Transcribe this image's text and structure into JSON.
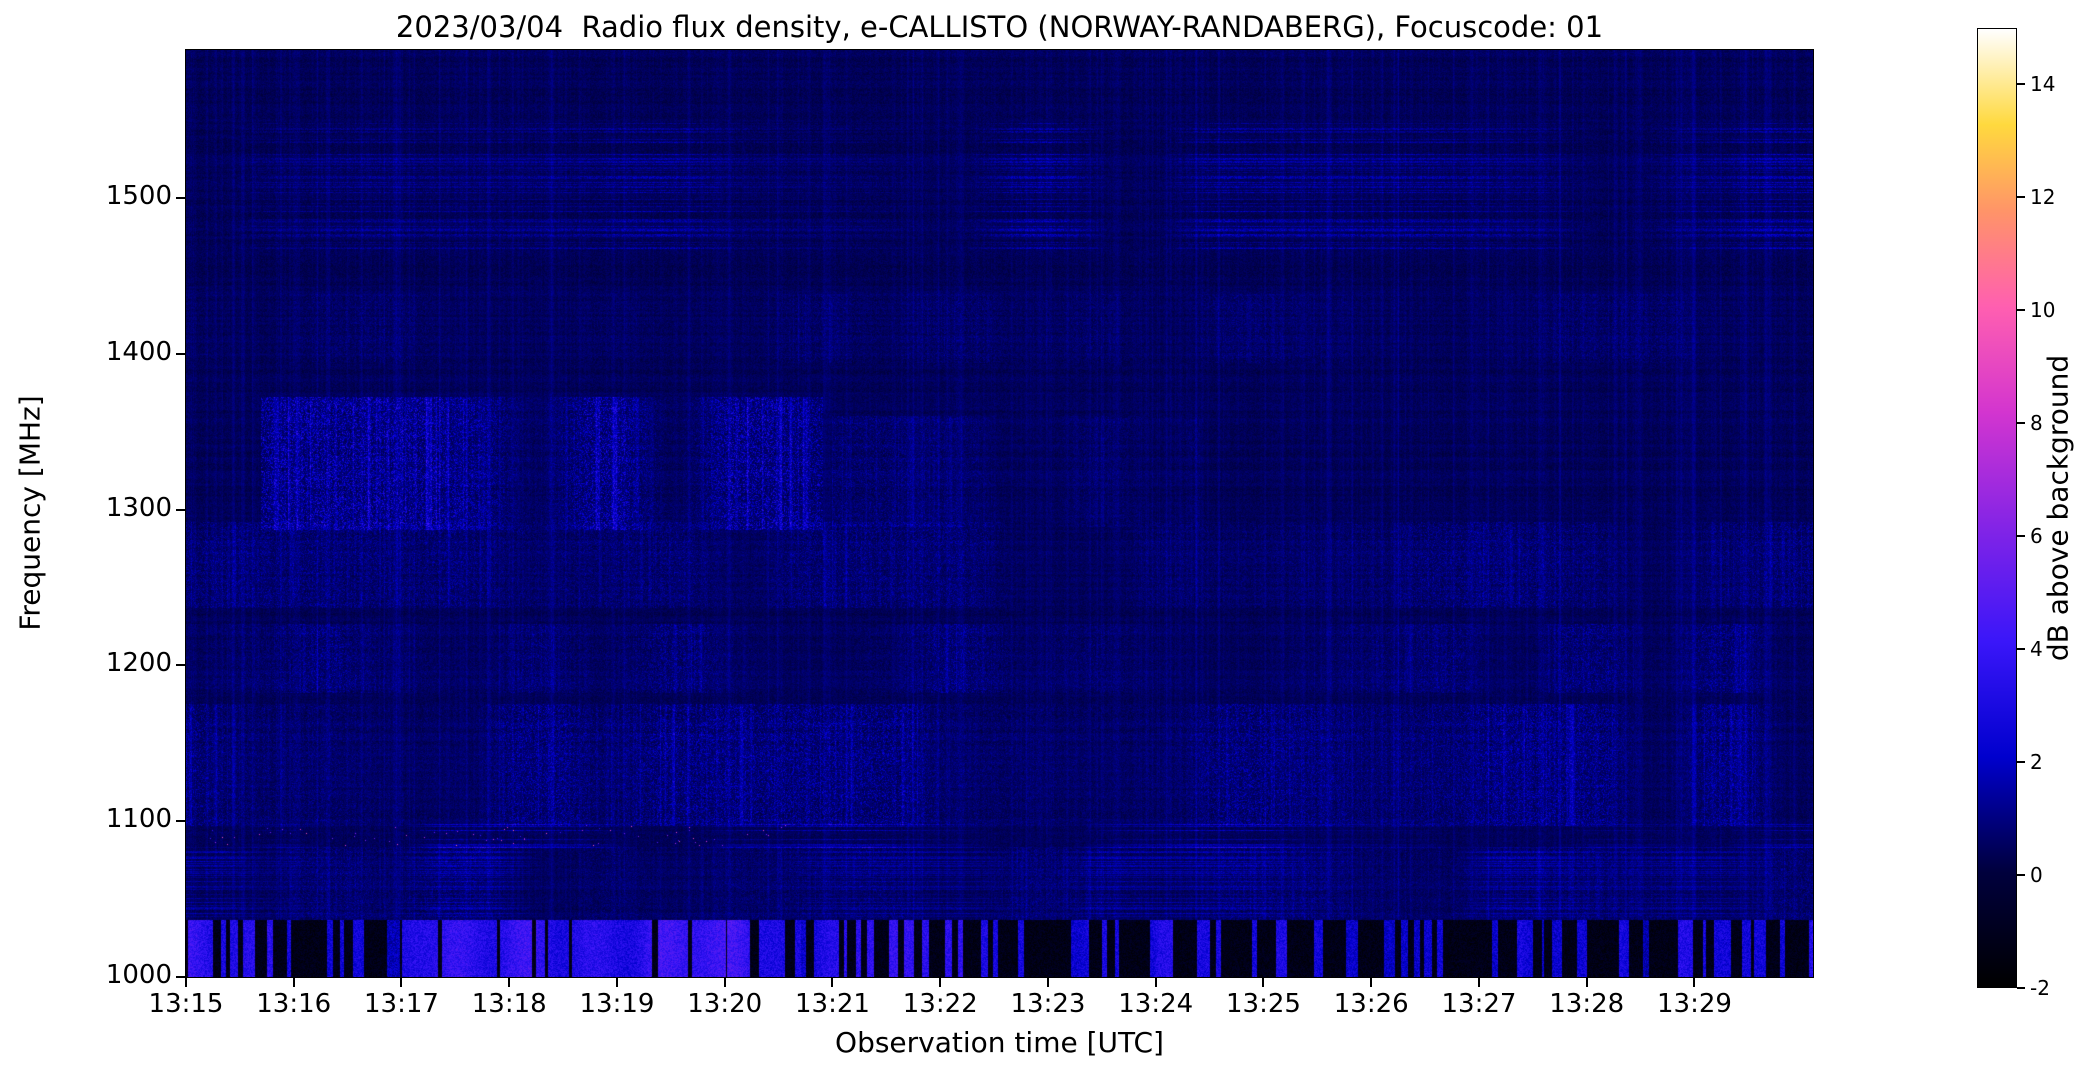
{
  "chart_data": {
    "type": "heatmap",
    "title": "2023/03/04  Radio flux density, e-CALLISTO (NORWAY-RANDABERG), Focuscode: 01",
    "date": "2023/03/04",
    "station": "NORWAY-RANDABERG",
    "focuscode": "01",
    "xlabel": "Observation time [UTC]",
    "ylabel": "Frequency [MHz]",
    "colorbar_label": "dB above background",
    "x_ticks": [
      "13:15",
      "13:16",
      "13:17",
      "13:18",
      "13:19",
      "13:20",
      "13:21",
      "13:22",
      "13:23",
      "13:24",
      "13:25",
      "13:26",
      "13:27",
      "13:28",
      "13:29"
    ],
    "x_range_minutes": [
      0,
      15.1
    ],
    "y_ticks": [
      1000,
      1100,
      1200,
      1300,
      1400,
      1500
    ],
    "y_range": [
      1000,
      1595
    ],
    "value_range": [
      -2,
      15
    ],
    "colorbar_ticks": [
      -2,
      0,
      2,
      4,
      6,
      8,
      10,
      12,
      14
    ],
    "grid": false,
    "legend": "colorbar-right",
    "colormap": {
      "name": "gnuplot2-like",
      "stops": [
        [
          0.0,
          "#000000"
        ],
        [
          0.12,
          "#00003d"
        ],
        [
          0.24,
          "#0000cd"
        ],
        [
          0.36,
          "#3a16f9"
        ],
        [
          0.48,
          "#8324e6"
        ],
        [
          0.6,
          "#d335cf"
        ],
        [
          0.71,
          "#ff5fb0"
        ],
        [
          0.81,
          "#ff9468"
        ],
        [
          0.9,
          "#ffd93e"
        ],
        [
          1.0,
          "#ffffff"
        ]
      ]
    },
    "background_level_db": 0.4,
    "features": [
      {
        "name": "rfi-lines-1500",
        "type": "hlines",
        "f": [
          1468,
          1548
        ],
        "t": [
          0,
          15.1
        ],
        "intensity": 2.0,
        "density": 0.3
      },
      {
        "name": "faint-noise-1420",
        "type": "speckle",
        "f": [
          1395,
          1438
        ],
        "t": [
          0,
          15.1
        ],
        "intensity": 0.45
      },
      {
        "name": "striation-grid-1330-left",
        "type": "speckle",
        "f": [
          1288,
          1372
        ],
        "t": [
          0.7,
          5.9
        ],
        "intensity": 1.7
      },
      {
        "name": "striation-grid-1330-mid",
        "type": "speckle",
        "f": [
          1290,
          1360
        ],
        "t": [
          6.0,
          9.4
        ],
        "intensity": 0.65
      },
      {
        "name": "textured-band-1260",
        "type": "speckle",
        "f": [
          1238,
          1292
        ],
        "t": [
          0,
          15.1
        ],
        "intensity": 0.8
      },
      {
        "name": "textured-band-1200",
        "type": "speckle",
        "f": [
          1183,
          1226
        ],
        "t": [
          0,
          15.1
        ],
        "intensity": 0.9
      },
      {
        "name": "speckle-band-1130",
        "type": "speckle",
        "f": [
          1098,
          1175
        ],
        "t": [
          0,
          15.1
        ],
        "intensity": 1.15
      },
      {
        "name": "rfi-line-1090",
        "type": "hlines",
        "f": [
          1083,
          1100
        ],
        "t": [
          0,
          15.1
        ],
        "intensity": 2.6,
        "density": 0.5
      },
      {
        "name": "bright-bursts-1090",
        "type": "spikes",
        "f": [
          1085,
          1097
        ],
        "t": [
          0.2,
          5.7
        ],
        "intensity": 6.5,
        "density": 0.006
      },
      {
        "name": "rfi-lines-1060",
        "type": "hlines",
        "f": [
          1037,
          1083
        ],
        "t": [
          0,
          15.1
        ],
        "intensity": 1.7,
        "density": 0.35
      },
      {
        "name": "texture-1060",
        "type": "speckle",
        "f": [
          1037,
          1083
        ],
        "t": [
          0,
          15.1
        ],
        "intensity": 0.6
      },
      {
        "name": "bottom-strip-band-1020",
        "type": "strip_band",
        "f": [
          1000,
          1036
        ],
        "t": [
          0,
          15.1
        ],
        "dark_value": -1.85,
        "base_prob": 0.33,
        "bright_windows": [
          [
            0,
            0.9,
            0.62
          ],
          [
            2.0,
            5.7,
            0.8
          ],
          [
            5.7,
            7.3,
            0.5
          ],
          [
            9.0,
            9.6,
            0.48
          ],
          [
            12.3,
            12.9,
            0.48
          ]
        ]
      }
    ]
  }
}
